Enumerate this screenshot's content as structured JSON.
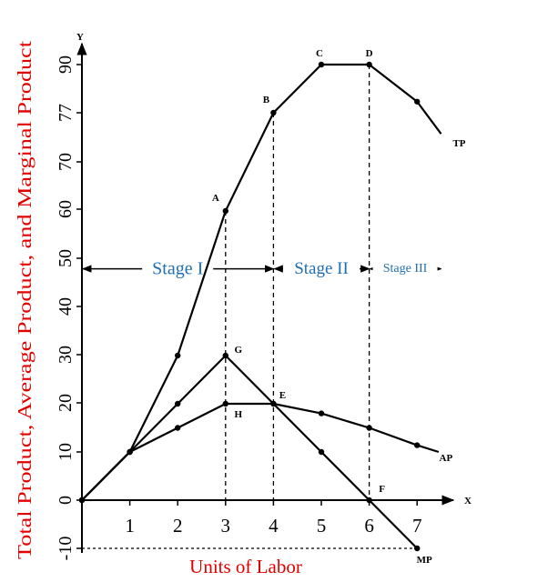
{
  "chart_data": {
    "type": "line",
    "xlabel": "Units of Labor",
    "ylabel": "Total Product, Average Product, and Marginal Product",
    "x_axis_letter": "X",
    "y_axis_letter": "Y",
    "xlim": [
      0,
      7.5
    ],
    "ylim": [
      -10,
      95
    ],
    "x_ticks": [
      1,
      2,
      3,
      4,
      5,
      6,
      7
    ],
    "y_ticks": [
      -10,
      0,
      10,
      20,
      30,
      40,
      50,
      60,
      70,
      77,
      90
    ],
    "grid": false,
    "colors": {
      "curve": "#000000",
      "axis_label": "#e00000",
      "stage": "#1f6fb2"
    },
    "series": [
      {
        "name": "TP",
        "points": [
          [
            0,
            0
          ],
          [
            1,
            10
          ],
          [
            2,
            30
          ],
          [
            3,
            60
          ],
          [
            4,
            77
          ],
          [
            5,
            90
          ],
          [
            6,
            90
          ],
          [
            7,
            80
          ]
        ],
        "end": [
          7.5,
          74
        ]
      },
      {
        "name": "AP",
        "points": [
          [
            0,
            0
          ],
          [
            1,
            10
          ],
          [
            2,
            15
          ],
          [
            3,
            20
          ],
          [
            4,
            20
          ],
          [
            5,
            18
          ],
          [
            6,
            15
          ],
          [
            7,
            11.4
          ]
        ],
        "end": [
          7.45,
          10
        ]
      },
      {
        "name": "MP",
        "points": [
          [
            0,
            0
          ],
          [
            1,
            10
          ],
          [
            2,
            20
          ],
          [
            3,
            30
          ],
          [
            4,
            20
          ],
          [
            5,
            10
          ],
          [
            6,
            0
          ],
          [
            7,
            -10
          ]
        ],
        "end": [
          7,
          -10
        ]
      }
    ],
    "point_labels": [
      {
        "text": "A",
        "x": 3,
        "y": 60
      },
      {
        "text": "B",
        "x": 4,
        "y": 77
      },
      {
        "text": "C",
        "x": 5,
        "y": 90
      },
      {
        "text": "D",
        "x": 6,
        "y": 90
      },
      {
        "text": "G",
        "x": 3,
        "y": 30
      },
      {
        "text": "H",
        "x": 3,
        "y": 20
      },
      {
        "text": "E",
        "x": 4,
        "y": 20
      },
      {
        "text": "F",
        "x": 6,
        "y": 0
      }
    ],
    "dashed_verticals": [
      {
        "x": 3,
        "y_top": 60
      },
      {
        "x": 4,
        "y_top": 77
      },
      {
        "x": 6,
        "y_top": 90
      }
    ],
    "dashed_horizontal": {
      "y": -10,
      "x_from": 0,
      "x_to": 7
    },
    "stages": [
      {
        "label": "Stage I",
        "x_from": 0,
        "x_to": 4
      },
      {
        "label": "Stage II",
        "x_from": 4,
        "x_to": 6
      },
      {
        "label": "Stage III",
        "x_from": 6,
        "x_to": 7.5
      }
    ],
    "stage_arrow_y": 48
  }
}
